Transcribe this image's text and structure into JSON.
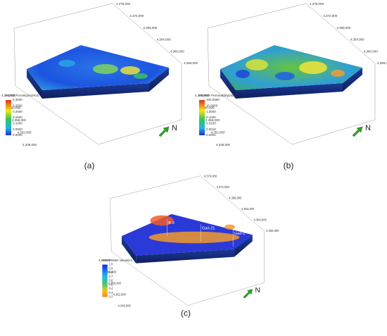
{
  "panels": [
    {
      "label": "(a)",
      "north": "N",
      "legend": {
        "title": "PORO Porosity(m3/m3)",
        "ticks": [
          "0.3000",
          "0.2500",
          "0.2000",
          "0.1500",
          "0.1000",
          "0.0500",
          "0.0000"
        ]
      },
      "right_axis": [
        "4,376,000",
        "4,372,000",
        "4,368,000",
        "4,364,000",
        "4,360,000",
        "4,356,000"
      ],
      "left_axis": [
        "4,364,000",
        "4,360,000",
        "4,356,000",
        "4,352,000",
        "4,348,000"
      ],
      "wells": []
    },
    {
      "label": "(b)",
      "north": "N",
      "legend": {
        "title": "PERMX Permeability(mD)",
        "ticks": [
          "100.0000",
          "10.0000",
          "1.0000",
          "0.1000",
          "0.0100",
          "0.0010",
          "0.0001"
        ]
      },
      "right_axis": [
        "4,376,000",
        "4,372,000",
        "4,368,000",
        "4,364,000",
        "4,360,000",
        "4,356,000"
      ],
      "left_axis": [
        "4,364,000",
        "4,360,000",
        "4,356,000",
        "4,352,000",
        "4,348,000"
      ],
      "wells": []
    },
    {
      "label": "(c)",
      "north": "N",
      "legend": {
        "title": "SWAT Water saturation",
        "ticks": [
          "1.0",
          "0.9",
          "0.8",
          "0.7",
          "0.6",
          "0.5",
          "0.4",
          "0.3",
          "0.2"
        ]
      },
      "right_axis": [
        "4,376,000",
        "4,372,000",
        "4,368,000",
        "4,364,000",
        "4,360,000",
        "4,356,000"
      ],
      "left_axis": [
        "4,364,000",
        "4,360,000",
        "4,356,000",
        "4,352,000",
        "4,348,000"
      ],
      "wells": [
        "B-3",
        "Gaó-21",
        "Gaó-1"
      ]
    }
  ]
}
